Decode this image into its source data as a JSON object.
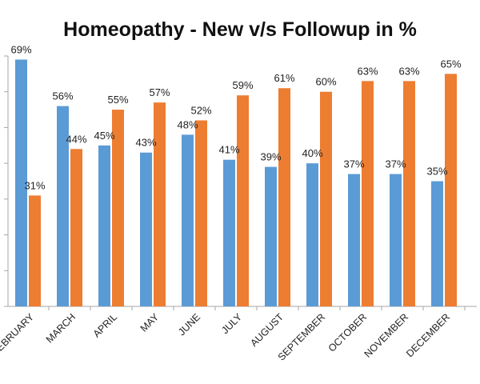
{
  "chart_data": {
    "type": "bar",
    "title": "Homeopathy - New v/s Followup in %",
    "xlabel": "",
    "ylabel": "",
    "ylim": [
      0,
      70
    ],
    "grid": false,
    "legend": "none",
    "categories": [
      "FEBRUARY",
      "MARCH",
      "APRIL",
      "MAY",
      "JUNE",
      "JULY",
      "AUGUST",
      "SEPTEMBER",
      "OCTOBER",
      "NOVEMBER",
      "DECEMBER"
    ],
    "series": [
      {
        "values": [
          69,
          56,
          45,
          43,
          48,
          41,
          39,
          40,
          37,
          37,
          35
        ],
        "labels": [
          "69%",
          "56%",
          "45%",
          "43%",
          "48%",
          "41%",
          "39%",
          "40%",
          "37%",
          "37%",
          "35%"
        ],
        "color": "#5B9BD5"
      },
      {
        "values": [
          31,
          44,
          55,
          57,
          52,
          59,
          61,
          60,
          63,
          63,
          65
        ],
        "labels": [
          "31%",
          "44%",
          "55%",
          "57%",
          "52%",
          "59%",
          "61%",
          "60%",
          "63%",
          "63%",
          "65%"
        ],
        "color": "#ED7D31"
      }
    ]
  }
}
